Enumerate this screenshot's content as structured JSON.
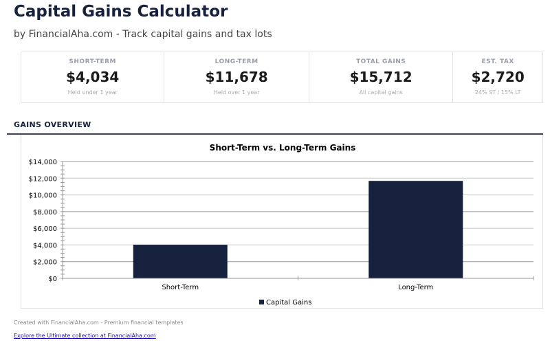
{
  "header": {
    "title": "Capital Gains Calculator",
    "subtitle": "by FinancialAha.com - Track capital gains and tax lots"
  },
  "cards": [
    {
      "label": "SHORT-TERM",
      "value": "$4,034",
      "sub": "Held under 1 year"
    },
    {
      "label": "LONG-TERM",
      "value": "$11,678",
      "sub": "Held over 1 year"
    },
    {
      "label": "TOTAL GAINS",
      "value": "$15,712",
      "sub": "All capital gains"
    },
    {
      "label": "EST. TAX",
      "value": "$2,720",
      "sub": "24% ST / 15% LT"
    }
  ],
  "section_title": "GAINS OVERVIEW",
  "chart_data": {
    "type": "bar",
    "title": "Short-Term vs. Long-Term Gains",
    "categories": [
      "Short-Term",
      "Long-Term"
    ],
    "series": [
      {
        "name": "Capital Gains",
        "values": [
          4034,
          11678
        ]
      }
    ],
    "ylim": [
      0,
      14000
    ],
    "yticks": [
      "$0",
      "$2,000",
      "$4,000",
      "$6,000",
      "$8,000",
      "$10,000",
      "$12,000",
      "$14,000"
    ],
    "grid": true,
    "legend": "bottom",
    "color": "#16213e"
  },
  "footer": {
    "credit": "Created with FinancialAha.com - Premium financial templates",
    "link": "Explore the Ultimate collection at FinancialAha.com"
  }
}
